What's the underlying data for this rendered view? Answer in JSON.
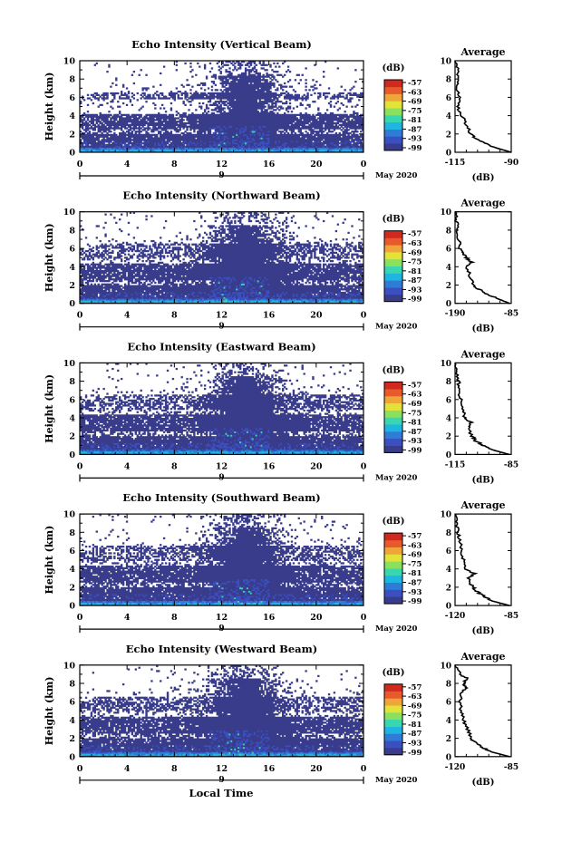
{
  "figure": {
    "xlabel": "Local Time",
    "colorbar_unit": "(dB)",
    "colorbar_ticks": [
      "-57",
      "-63",
      "-69",
      "-75",
      "-81",
      "-87",
      "-93",
      "-99"
    ],
    "colors": [
      "#393c8a",
      "#3a4fc0",
      "#2f7cd6",
      "#1eb5e0",
      "#39d7b0",
      "#8be05e",
      "#e2e238",
      "#f0a53a",
      "#e8592b",
      "#d02a1f"
    ],
    "date_label": "May 2020",
    "date_day": "9"
  },
  "chart_data": [
    {
      "type": "heatmap",
      "title": "Echo Intensity (Vertical Beam)",
      "ylabel": "Height (km)",
      "x_ticks": [
        "0",
        "4",
        "8",
        "12",
        "16",
        "20",
        "0"
      ],
      "y_ticks": [
        "0",
        "2",
        "4",
        "6",
        "8",
        "10"
      ],
      "xlim": [
        0,
        24
      ],
      "ylim": [
        0,
        10
      ],
      "profile": {
        "title": "Average",
        "xlabel": "(dB)",
        "x_ticks": [
          "-115",
          "-90"
        ],
        "xlim": [
          -115,
          -90
        ],
        "y_ticks": [
          "0",
          "2",
          "4",
          "6",
          "8",
          "10"
        ],
        "height": [
          0,
          0.5,
          1,
          1.5,
          2,
          3,
          4,
          5,
          6,
          7,
          8,
          9,
          10
        ],
        "value": [
          -90,
          -97,
          -102,
          -106,
          -108,
          -110,
          -112,
          -114,
          -113,
          -114,
          -113,
          -114,
          -115
        ]
      }
    },
    {
      "type": "heatmap",
      "title": "Echo Intensity (Northward Beam)",
      "ylabel": "Height (km)",
      "x_ticks": [
        "0",
        "4",
        "8",
        "12",
        "16",
        "20",
        "0"
      ],
      "y_ticks": [
        "0",
        "2",
        "4",
        "6",
        "8",
        "10"
      ],
      "xlim": [
        0,
        24
      ],
      "ylim": [
        0,
        10
      ],
      "profile": {
        "title": "Average",
        "xlabel": "(dB)",
        "x_ticks": [
          "-190",
          "-85"
        ],
        "xlim": [
          -190,
          -85
        ],
        "y_ticks": [
          "0",
          "2",
          "4",
          "6",
          "8",
          "10"
        ],
        "height": [
          0,
          0.5,
          1,
          1.5,
          2,
          3,
          4,
          4.5,
          5,
          5.5,
          6,
          7,
          8,
          9,
          10
        ],
        "value": [
          -88,
          -110,
          -130,
          -145,
          -155,
          -162,
          -168,
          -158,
          -170,
          -175,
          -180,
          -183,
          -185,
          -187,
          -190
        ]
      }
    },
    {
      "type": "heatmap",
      "title": "Echo Intensity (Eastward Beam)",
      "ylabel": "Height (km)",
      "x_ticks": [
        "0",
        "4",
        "8",
        "12",
        "16",
        "20",
        "0"
      ],
      "y_ticks": [
        "0",
        "2",
        "4",
        "6",
        "8",
        "10"
      ],
      "xlim": [
        0,
        24
      ],
      "ylim": [
        0,
        10
      ],
      "profile": {
        "title": "Average",
        "xlabel": "(dB)",
        "x_ticks": [
          "-115",
          "-85"
        ],
        "xlim": [
          -115,
          -85
        ],
        "y_ticks": [
          "0",
          "2",
          "4",
          "6",
          "8",
          "10"
        ],
        "height": [
          0,
          0.5,
          1,
          1.5,
          2,
          3,
          3.5,
          4,
          5,
          6,
          7,
          8,
          9,
          10
        ],
        "value": [
          -86,
          -95,
          -100,
          -104,
          -106,
          -108,
          -106,
          -110,
          -111,
          -112,
          -113,
          -113,
          -114,
          -115
        ]
      }
    },
    {
      "type": "heatmap",
      "title": "Echo Intensity (Southward Beam)",
      "ylabel": "Height (km)",
      "x_ticks": [
        "0",
        "4",
        "8",
        "12",
        "16",
        "20",
        "0"
      ],
      "y_ticks": [
        "0",
        "2",
        "4",
        "6",
        "8",
        "10"
      ],
      "xlim": [
        0,
        24
      ],
      "ylim": [
        0,
        10
      ],
      "profile": {
        "title": "Average",
        "xlabel": "(dB)",
        "x_ticks": [
          "-120",
          "-85"
        ],
        "xlim": [
          -120,
          -85
        ],
        "y_ticks": [
          "0",
          "2",
          "4",
          "6",
          "8",
          "10"
        ],
        "height": [
          0,
          0.5,
          1,
          1.5,
          2,
          3,
          3.5,
          4,
          5,
          6,
          7,
          8,
          9,
          10
        ],
        "value": [
          -86,
          -97,
          -102,
          -106,
          -109,
          -112,
          -108,
          -114,
          -115,
          -116,
          -117,
          -118,
          -119,
          -120
        ]
      }
    },
    {
      "type": "heatmap",
      "title": "Echo Intensity (Westward Beam)",
      "ylabel": "Height (km)",
      "x_ticks": [
        "0",
        "4",
        "8",
        "12",
        "16",
        "20",
        "0"
      ],
      "y_ticks": [
        "0",
        "2",
        "4",
        "6",
        "8",
        "10"
      ],
      "xlim": [
        0,
        24
      ],
      "ylim": [
        0,
        10
      ],
      "profile": {
        "title": "Average",
        "xlabel": "(dB)",
        "x_ticks": [
          "-120",
          "-85"
        ],
        "xlim": [
          -120,
          -85
        ],
        "y_ticks": [
          "0",
          "2",
          "4",
          "6",
          "8",
          "10"
        ],
        "height": [
          0,
          0.5,
          1,
          1.5,
          2,
          3,
          4,
          5,
          6,
          7,
          7.5,
          8,
          8.5,
          9,
          10
        ],
        "value": [
          -86,
          -97,
          -103,
          -107,
          -110,
          -112,
          -115,
          -116,
          -117,
          -116,
          -113,
          -115,
          -112,
          -117,
          -120
        ]
      }
    }
  ]
}
